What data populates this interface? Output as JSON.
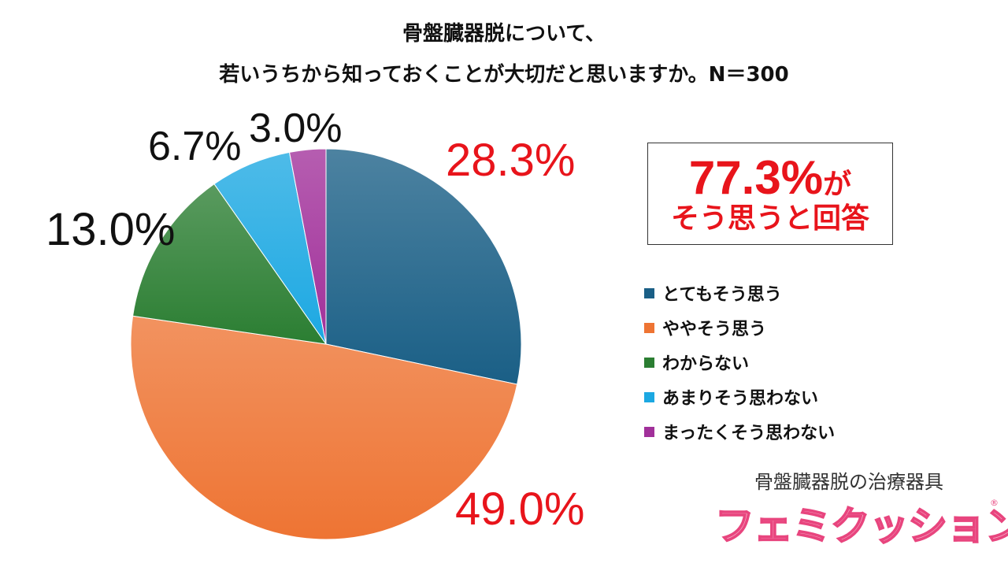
{
  "chart_data": {
    "type": "pie",
    "title_lines": [
      "骨盤臓器脱について、",
      "若いうちから知っておくことが大切だと思いますか。N＝300"
    ],
    "categories": [
      "とてもそう思う",
      "ややそう思う",
      "わからない",
      "あまりそう思わない",
      "まったくそう思わない"
    ],
    "values": [
      28.3,
      49.0,
      13.0,
      6.7,
      3.0
    ],
    "labels": [
      "28.3%",
      "49.0%",
      "13.0%",
      "6.7%",
      "3.0%"
    ],
    "colors": [
      "#1a5f86",
      "#ee7433",
      "#2b7e32",
      "#1ca8e2",
      "#a1309a"
    ],
    "label_colors": [
      "#e8141b",
      "#e8141b",
      "#111111",
      "#111111",
      "#111111"
    ],
    "start_angle": "12 o'clock",
    "direction": "clockwise",
    "legend_position": "right"
  },
  "callout": {
    "percent": "77.3%",
    "suffix": "が",
    "line2": "そう思うと回答"
  },
  "brand": {
    "subtitle": "骨盤臓器脱の治療器具",
    "logo": "フェミクッション",
    "reg": "®"
  }
}
